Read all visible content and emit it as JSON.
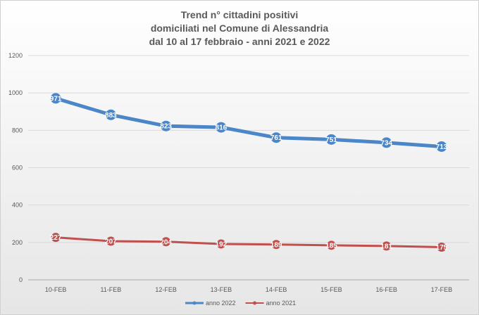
{
  "chart_data": {
    "type": "line",
    "title": [
      "Trend n° cittadini positivi",
      "domiciliati nel Comune di Alessandria",
      "dal 10 al 17 febbraio - anni 2021 e 2022"
    ],
    "categories": [
      "10-FEB",
      "11-FEB",
      "12-FEB",
      "13-FEB",
      "14-FEB",
      "15-FEB",
      "16-FEB",
      "17-FEB"
    ],
    "y_ticks": [
      "0",
      "200",
      "400",
      "600",
      "800",
      "1000",
      "1200"
    ],
    "ylim": [
      0,
      1200
    ],
    "grid": true,
    "legend_position": "bottom",
    "series": [
      {
        "name": "anno 2022",
        "color": "#4a86c8",
        "values": [
          971,
          883,
          823,
          816,
          761,
          751,
          734,
          713
        ],
        "labels": [
          "971",
          "883",
          "823",
          "816",
          "761",
          "751",
          "734",
          "713"
        ]
      },
      {
        "name": "anno 2021",
        "color": "#c0504d",
        "values": [
          227,
          207,
          204,
          192,
          189,
          185,
          181,
          175
        ],
        "labels": [
          "227",
          "207",
          "204",
          "192",
          "189",
          "185",
          "181",
          "175"
        ]
      }
    ]
  }
}
